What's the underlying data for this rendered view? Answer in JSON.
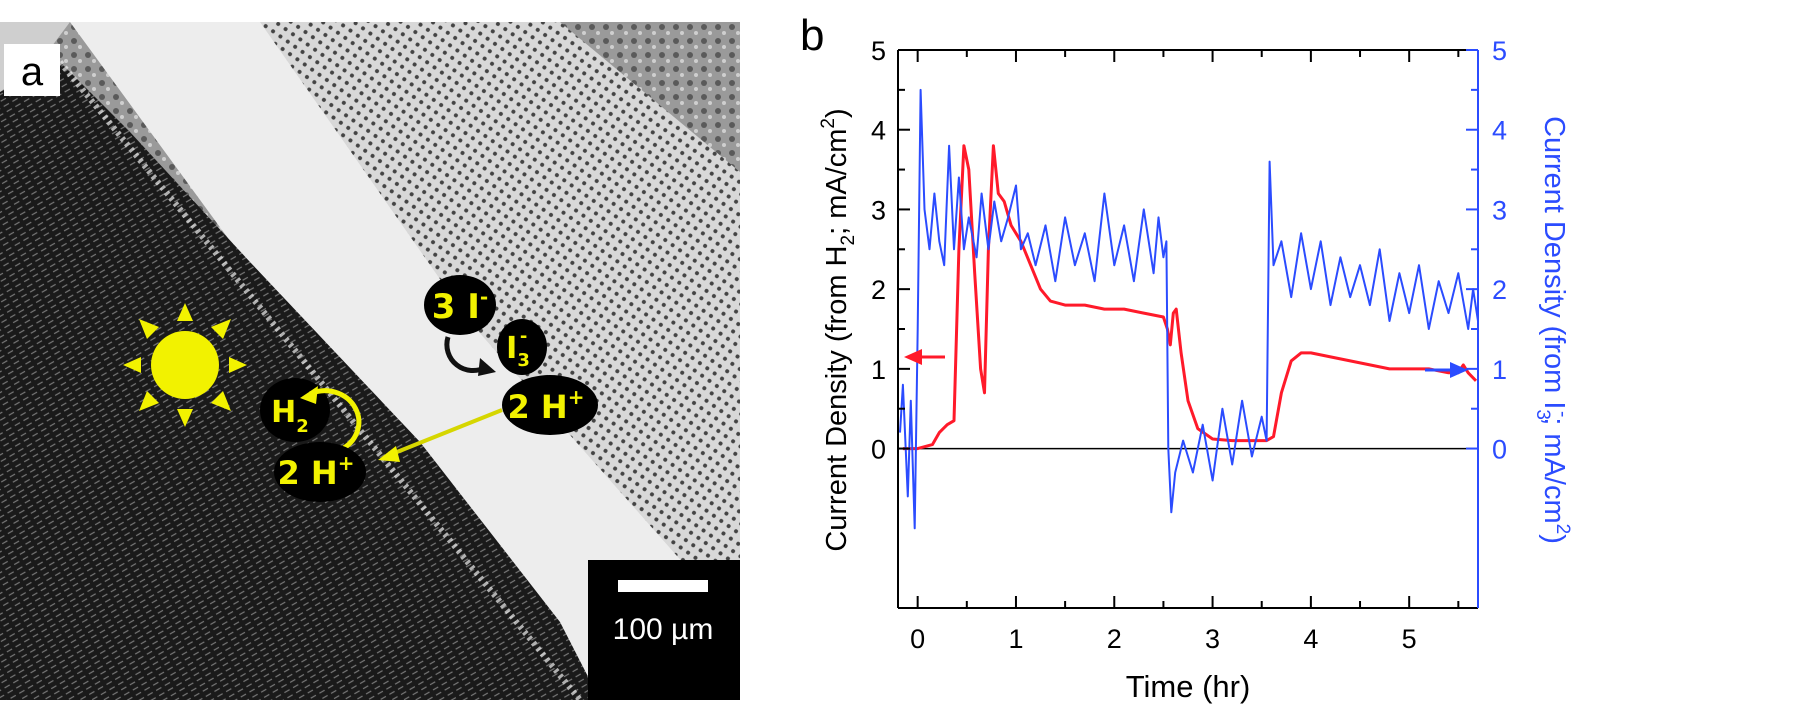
{
  "panel_a": {
    "label": "a",
    "species": {
      "triiodide_left": {
        "main": "3 I",
        "sup": "-"
      },
      "triiodide": {
        "main": "I",
        "sub": "3",
        "sup": "-"
      },
      "protons_right": {
        "main": "2 H",
        "sup": "+"
      },
      "hydrogen": {
        "main": "H",
        "sub": "2"
      },
      "protons_left": {
        "main": "2 H",
        "sup": "+"
      }
    },
    "scale_bar": "100 µm",
    "icons": [
      "sun-icon",
      "curved-arrow-icon",
      "arrow-icon"
    ],
    "colors": {
      "annotation": "#f2f200",
      "bubble": "#000000"
    }
  },
  "chart_data": {
    "panel_label": "b",
    "type": "line",
    "xlabel": "Time (hr)",
    "ylabel_left": {
      "pre": "Current Density (from H",
      "sub": "2",
      "mid": "; mA/cm",
      "sup": "2",
      "post": ")"
    },
    "ylabel_right": {
      "pre": "Current Density (from I",
      "sub": "3",
      "sup1": "-",
      "mid": "; mA/cm",
      "sup": "2",
      "post": ")"
    },
    "xlim": [
      -0.2,
      5.7
    ],
    "ylim": [
      -2,
      5
    ],
    "xticks": [
      "0",
      "1",
      "2",
      "3",
      "4",
      "5"
    ],
    "yticks_left": [
      "0",
      "1",
      "2",
      "3",
      "4",
      "5"
    ],
    "yticks_right": [
      "0",
      "1",
      "2",
      "3",
      "4",
      "5"
    ],
    "zero_line": true,
    "grid": false,
    "series": [
      {
        "axis": "left",
        "color": "#ff1a2a",
        "x": [
          -0.15,
          0.0,
          0.15,
          0.22,
          0.3,
          0.37,
          0.42,
          0.47,
          0.52,
          0.58,
          0.64,
          0.68,
          0.72,
          0.77,
          0.82,
          0.88,
          0.95,
          1.05,
          1.15,
          1.25,
          1.35,
          1.5,
          1.7,
          1.9,
          2.1,
          2.3,
          2.5,
          2.54,
          2.57,
          2.6,
          2.63,
          2.68,
          2.75,
          2.85,
          3.0,
          3.2,
          3.4,
          3.55,
          3.62,
          3.7,
          3.8,
          3.9,
          4.0,
          4.2,
          4.4,
          4.6,
          4.8,
          5.0,
          5.2,
          5.4,
          5.5,
          5.55,
          5.6,
          5.68
        ],
        "y": [
          0.0,
          0.0,
          0.05,
          0.2,
          0.3,
          0.35,
          2.5,
          3.8,
          3.5,
          2.2,
          1.0,
          0.7,
          2.5,
          3.8,
          3.2,
          3.1,
          2.8,
          2.6,
          2.3,
          2.0,
          1.85,
          1.8,
          1.8,
          1.75,
          1.75,
          1.7,
          1.65,
          1.5,
          1.3,
          1.7,
          1.75,
          1.2,
          0.6,
          0.25,
          0.12,
          0.1,
          0.1,
          0.1,
          0.15,
          0.7,
          1.1,
          1.2,
          1.2,
          1.15,
          1.1,
          1.05,
          1.0,
          1.0,
          1.0,
          0.95,
          0.95,
          1.05,
          0.95,
          0.85
        ]
      },
      {
        "axis": "right",
        "color": "#2b4cff",
        "x": [
          -0.18,
          -0.15,
          -0.1,
          -0.07,
          -0.03,
          0.0,
          0.03,
          0.07,
          0.12,
          0.17,
          0.22,
          0.27,
          0.32,
          0.37,
          0.42,
          0.47,
          0.52,
          0.6,
          0.65,
          0.72,
          0.78,
          0.85,
          0.92,
          1.0,
          1.05,
          1.12,
          1.2,
          1.3,
          1.4,
          1.5,
          1.6,
          1.7,
          1.8,
          1.9,
          2.0,
          2.1,
          2.2,
          2.3,
          2.4,
          2.45,
          2.5,
          2.53,
          2.55,
          2.58,
          2.62,
          2.7,
          2.8,
          2.9,
          3.0,
          3.1,
          3.2,
          3.3,
          3.4,
          3.5,
          3.55,
          3.58,
          3.62,
          3.7,
          3.8,
          3.9,
          4.0,
          4.1,
          4.2,
          4.3,
          4.4,
          4.5,
          4.6,
          4.7,
          4.8,
          4.9,
          5.0,
          5.1,
          5.2,
          5.3,
          5.4,
          5.5,
          5.6,
          5.65,
          5.7
        ],
        "y": [
          0.2,
          0.8,
          -0.6,
          0.6,
          -1.0,
          1.5,
          4.5,
          3.0,
          2.5,
          3.2,
          2.6,
          2.3,
          3.8,
          2.5,
          3.4,
          2.5,
          2.9,
          2.4,
          3.2,
          2.5,
          3.1,
          2.6,
          2.9,
          3.3,
          2.5,
          2.7,
          2.3,
          2.8,
          2.1,
          2.9,
          2.3,
          2.7,
          2.1,
          3.2,
          2.3,
          2.8,
          2.1,
          3.0,
          2.2,
          2.9,
          2.4,
          2.6,
          0.0,
          -0.8,
          -0.3,
          0.1,
          -0.3,
          0.3,
          -0.4,
          0.5,
          -0.2,
          0.6,
          -0.1,
          0.4,
          0.1,
          3.6,
          2.3,
          2.6,
          1.9,
          2.7,
          2.0,
          2.6,
          1.8,
          2.4,
          1.9,
          2.3,
          1.8,
          2.5,
          1.6,
          2.2,
          1.7,
          2.3,
          1.5,
          2.1,
          1.7,
          2.2,
          1.5,
          2.0,
          1.6
        ]
      }
    ],
    "annotations": [
      {
        "type": "arrow",
        "direction": "left",
        "color": "#ff1a2a",
        "meaning": "left axis"
      },
      {
        "type": "arrow",
        "direction": "right",
        "color": "#2b4cff",
        "meaning": "right axis"
      }
    ]
  }
}
